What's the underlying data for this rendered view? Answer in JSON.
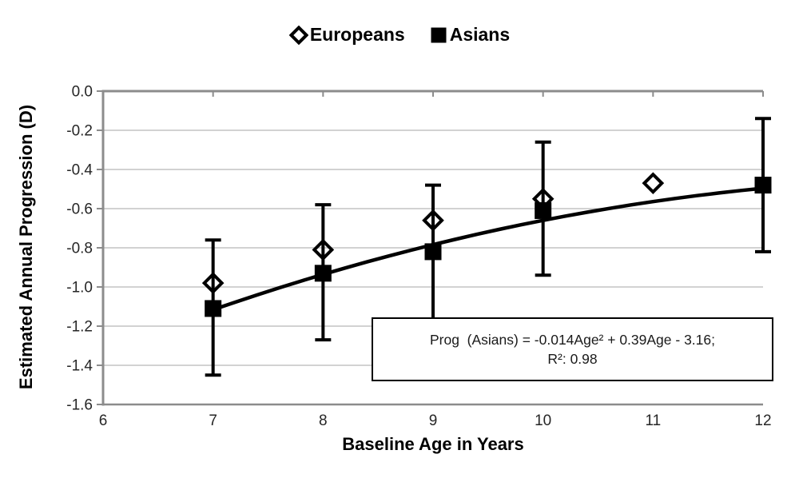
{
  "legend": {
    "items": [
      {
        "label": "Europeans",
        "marker": "diamond-open"
      },
      {
        "label": "Asians",
        "marker": "square-filled"
      }
    ]
  },
  "annotation": {
    "line1": "Prog  (Asians) = -0.014Age² + 0.39Age - 3.16;",
    "line2": "R²: 0.98"
  },
  "chart_data": {
    "type": "scatter",
    "title": "",
    "xlabel": "Baseline Age in Years",
    "ylabel": "Estimated Annual Progression (D)",
    "xlim": [
      6,
      12
    ],
    "ylim": [
      0,
      -1.6
    ],
    "x_ticks": [
      "6",
      "7",
      "8",
      "9",
      "10",
      "11",
      "12"
    ],
    "x_tick_values": [
      6,
      7,
      8,
      9,
      10,
      11,
      12
    ],
    "y_ticks": [
      "0.0",
      "-0.2",
      "-0.4",
      "-0.6",
      "-0.8",
      "-1.0",
      "-1.2",
      "-1.4",
      "-1.6"
    ],
    "y_tick_values": [
      0,
      -0.2,
      -0.4,
      -0.6,
      -0.8,
      -1.0,
      -1.2,
      -1.4,
      -1.6
    ],
    "grid": "horizontal-only",
    "legend_position": "top-center",
    "series": [
      {
        "name": "Europeans",
        "marker": "diamond-open",
        "x": [
          7,
          8,
          9,
          10,
          11
        ],
        "values": [
          -0.98,
          -0.81,
          -0.66,
          -0.55,
          -0.47
        ]
      },
      {
        "name": "Asians",
        "marker": "square-filled",
        "x": [
          7,
          8,
          9,
          10,
          12
        ],
        "values": [
          -1.11,
          -0.93,
          -0.82,
          -0.61,
          -0.48
        ],
        "error_bars": [
          {
            "x": 7,
            "hi": -0.76,
            "lo": -1.45
          },
          {
            "x": 8,
            "hi": -0.58,
            "lo": -1.27
          },
          {
            "x": 9,
            "hi": -0.48,
            "lo": -1.17
          },
          {
            "x": 10,
            "hi": -0.26,
            "lo": -0.94
          },
          {
            "x": 12,
            "hi": -0.14,
            "lo": -0.82
          }
        ]
      }
    ],
    "trendline": {
      "applies_to": "Asians",
      "equation_text": "Prog (Asians) = -0.014Age² + 0.39Age - 3.16",
      "r_squared": 0.98,
      "a": -0.014,
      "b": 0.39,
      "c": -3.16,
      "domain": [
        7,
        12
      ]
    },
    "colors": {
      "axis": "#8c8c8c",
      "grid": "#c4c4c4",
      "data": "#000000",
      "tick_text": "#262626"
    }
  }
}
